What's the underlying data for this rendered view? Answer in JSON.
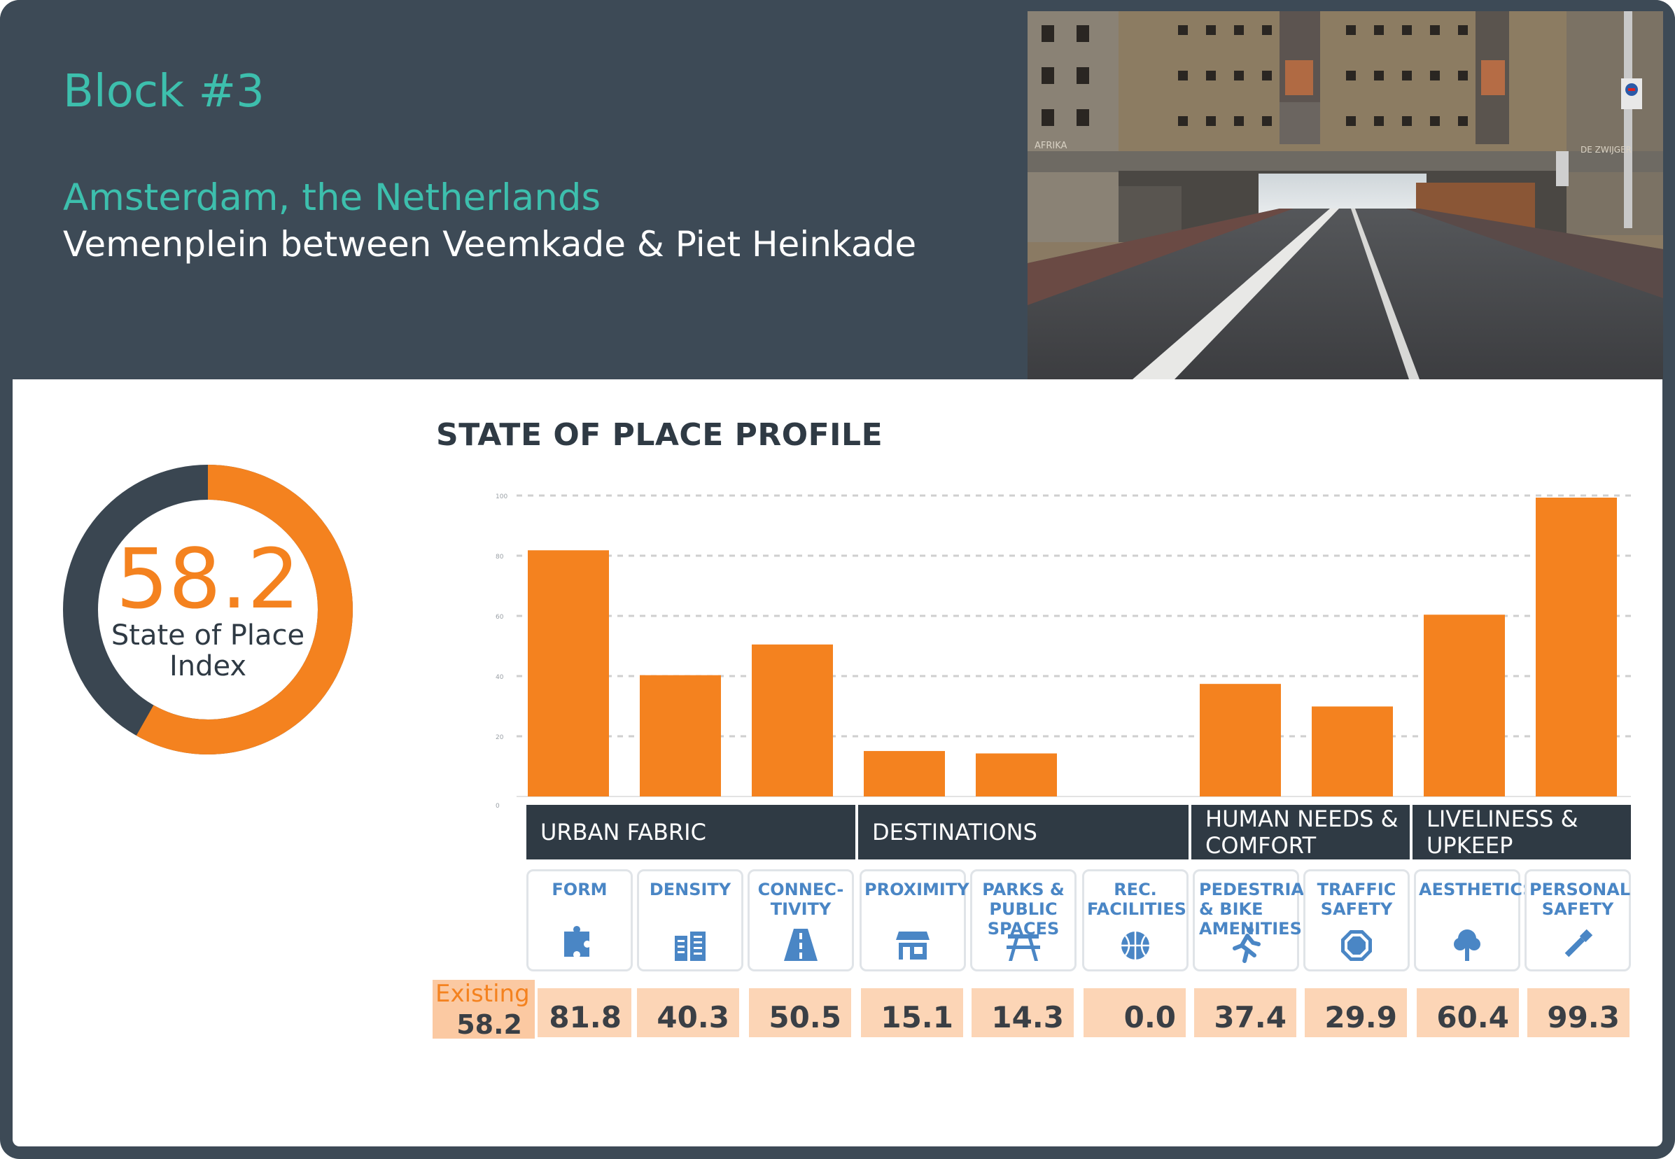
{
  "header": {
    "block_title": "Block #3",
    "city": "Amsterdam, the Netherlands",
    "street": "Vemenplein between Veemkade & Piet Heinkade",
    "photo_text": {
      "building_sign": "AFRIKA",
      "building_sign_right": "DE ZWIJGER"
    }
  },
  "index": {
    "value": "58.2",
    "label": "State of Place Index",
    "fraction": 0.582
  },
  "chart_data": {
    "type": "bar",
    "title": "STATE OF PLACE PROFILE",
    "ylim": [
      0,
      100
    ],
    "yticks": [
      "0",
      "20",
      "40",
      "60",
      "80",
      "100"
    ],
    "grid": true,
    "categories": [
      "FORM",
      "DENSITY",
      "CONNEC-TIVITY",
      "PROXIMITY",
      "PARKS & PUBLIC SPACES",
      "REC. FACILITIES",
      "PEDESTRIAN & BIKE AMENITIES",
      "TRAFFIC SAFETY",
      "AESTHETICS",
      "PERSONAL SAFETY"
    ],
    "values": [
      81.8,
      40.3,
      50.5,
      15.1,
      14.3,
      0.0,
      37.4,
      29.9,
      60.4,
      99.3
    ],
    "groups": [
      {
        "name": "URBAN FABRIC",
        "members": [
          "FORM",
          "DENSITY",
          "CONNEC-TIVITY"
        ]
      },
      {
        "name": "DESTINATIONS",
        "members": [
          "PROXIMITY",
          "PARKS & PUBLIC SPACES",
          "REC. FACILITIES"
        ]
      },
      {
        "name": "HUMAN NEEDS & COMFORT",
        "members": [
          "PEDESTRIAN & BIKE AMENITIES",
          "TRAFFIC SAFETY"
        ]
      },
      {
        "name": "LIVELINESS & UPKEEP",
        "members": [
          "AESTHETICS",
          "PERSONAL SAFETY"
        ]
      }
    ],
    "bar_color": "#f4821f"
  },
  "categories": [
    {
      "label": "URBAN FABRIC"
    },
    {
      "label": "DESTINATIONS"
    },
    {
      "label": "HUMAN NEEDS & COMFORT"
    },
    {
      "label": "LIVELINESS & UPKEEP"
    }
  ],
  "indicators": [
    {
      "label": "FORM",
      "icon": "puzzle-icon",
      "score": "81.8"
    },
    {
      "label": "DENSITY",
      "icon": "buildings-icon",
      "score": "40.3"
    },
    {
      "label": "CONNEC-TIVITY",
      "icon": "road-icon",
      "score": "50.5"
    },
    {
      "label": "PROXIMITY",
      "icon": "storefront-icon",
      "score": "15.1"
    },
    {
      "label": "PARKS & PUBLIC SPACES",
      "icon": "picnic-table-icon",
      "score": "14.3"
    },
    {
      "label": "REC. FACILITIES",
      "icon": "basketball-icon",
      "score": "0.0"
    },
    {
      "label": "PEDESTRIAN & BIKE AMENITIES",
      "icon": "walker-icon",
      "score": "37.4"
    },
    {
      "label": "TRAFFIC SAFETY",
      "icon": "stop-sign-icon",
      "score": "29.9"
    },
    {
      "label": "AESTHETICS",
      "icon": "tree-icon",
      "score": "60.4"
    },
    {
      "label": "PERSONAL SAFETY",
      "icon": "flashlight-icon",
      "score": "99.3"
    }
  ],
  "existing": {
    "label": "Existing",
    "value": "58.2"
  },
  "colors": {
    "header_bg": "#3d4a56",
    "teal": "#3dbfad",
    "orange": "#f4821f",
    "dark": "#2f3a44",
    "blue": "#4a86c5",
    "score_bg": "#fcd5b6"
  }
}
